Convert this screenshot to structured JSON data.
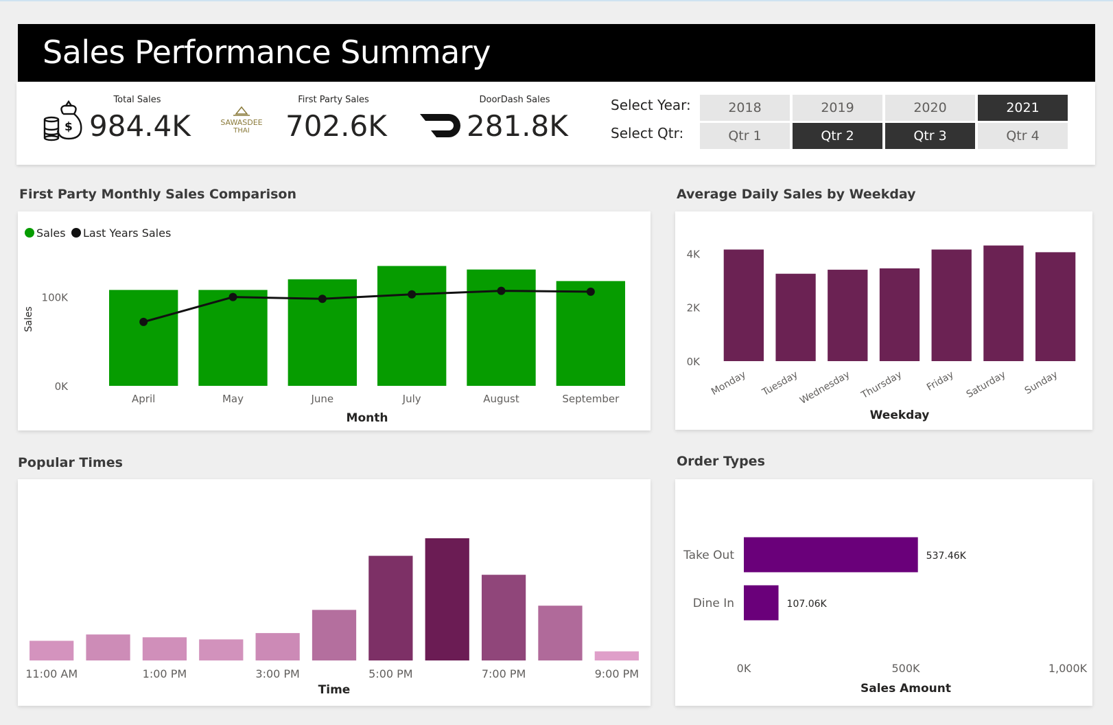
{
  "header": {
    "title": "Sales Performance Summary"
  },
  "kpis": {
    "total_sales": {
      "label": "Total Sales",
      "value": "984.4K",
      "icon": "money-bag-icon"
    },
    "first_party": {
      "label": "First Party Sales",
      "value": "702.6K",
      "icon": "sawasdee-thai-logo"
    },
    "doordash": {
      "label": "DoorDash Sales",
      "value": "281.8K",
      "icon": "doordash-logo-icon"
    }
  },
  "logo_text": {
    "line1": "SAWASDEE",
    "line2": "THAI"
  },
  "slicers": {
    "year": {
      "label": "Select Year:",
      "options": [
        "2018",
        "2019",
        "2020",
        "2021"
      ],
      "selected": [
        "2021"
      ]
    },
    "qtr": {
      "label": "Select Qtr:",
      "options": [
        "Qtr 1",
        "Qtr 2",
        "Qtr 3",
        "Qtr 4"
      ],
      "selected": [
        "Qtr 2",
        "Qtr 3"
      ]
    }
  },
  "sections": {
    "monthly": "First Party Monthly Sales Comparison",
    "weekday": "Average Daily Sales by Weekday",
    "popular": "Popular Times",
    "order_types": "Order Types"
  },
  "colors": {
    "green": "#069c00",
    "plum": "#6b2253",
    "purple": "#6a007a",
    "selected_slicer": "#333333"
  },
  "chart_data": [
    {
      "id": "monthly",
      "type": "bar",
      "categories": [
        "April",
        "May",
        "June",
        "July",
        "August",
        "September"
      ],
      "series": [
        {
          "name": "Sales",
          "type": "bar",
          "values": [
            108000,
            108000,
            120000,
            135000,
            131000,
            118000
          ]
        },
        {
          "name": "Last Years Sales",
          "type": "line",
          "values": [
            72000,
            100000,
            98000,
            103000,
            107000,
            106000
          ]
        }
      ],
      "xlabel": "Month",
      "ylabel": "Sales",
      "yticks": [
        "0K",
        "100K"
      ],
      "ylim": [
        0,
        150000
      ],
      "legend": "top-left"
    },
    {
      "id": "weekday",
      "type": "bar",
      "categories": [
        "Monday",
        "Tuesday",
        "Wednesday",
        "Thursday",
        "Friday",
        "Saturday",
        "Sunday"
      ],
      "values": [
        4150,
        3250,
        3400,
        3450,
        4150,
        4300,
        4050
      ],
      "xlabel": "Weekday",
      "ylabel": "",
      "yticks": [
        "0K",
        "2K",
        "4K"
      ],
      "ylim": [
        0,
        4800
      ]
    },
    {
      "id": "popular",
      "type": "bar",
      "categories": [
        "11:00 AM",
        "12:00 PM",
        "1:00 PM",
        "2:00 PM",
        "3:00 PM",
        "4:00 PM",
        "5:00 PM",
        "6:00 PM",
        "7:00 PM",
        "8:00 PM",
        "9:00 PM"
      ],
      "tick_labels": [
        "11:00 AM",
        "1:00 PM",
        "3:00 PM",
        "5:00 PM",
        "7:00 PM",
        "9:00 PM"
      ],
      "values": [
        28,
        37,
        33,
        30,
        39,
        72,
        149,
        174,
        122,
        78,
        13
      ],
      "xlabel": "Time",
      "ylabel": ""
    },
    {
      "id": "order_types",
      "type": "bar",
      "orientation": "horizontal",
      "categories": [
        "Take Out",
        "Dine In"
      ],
      "values": [
        537460,
        107060
      ],
      "data_labels": [
        "537.46K",
        "107.06K"
      ],
      "xticks": [
        "0K",
        "500K",
        "1,000K"
      ],
      "xlim": [
        0,
        1000000
      ],
      "xlabel": "Sales Amount"
    }
  ]
}
